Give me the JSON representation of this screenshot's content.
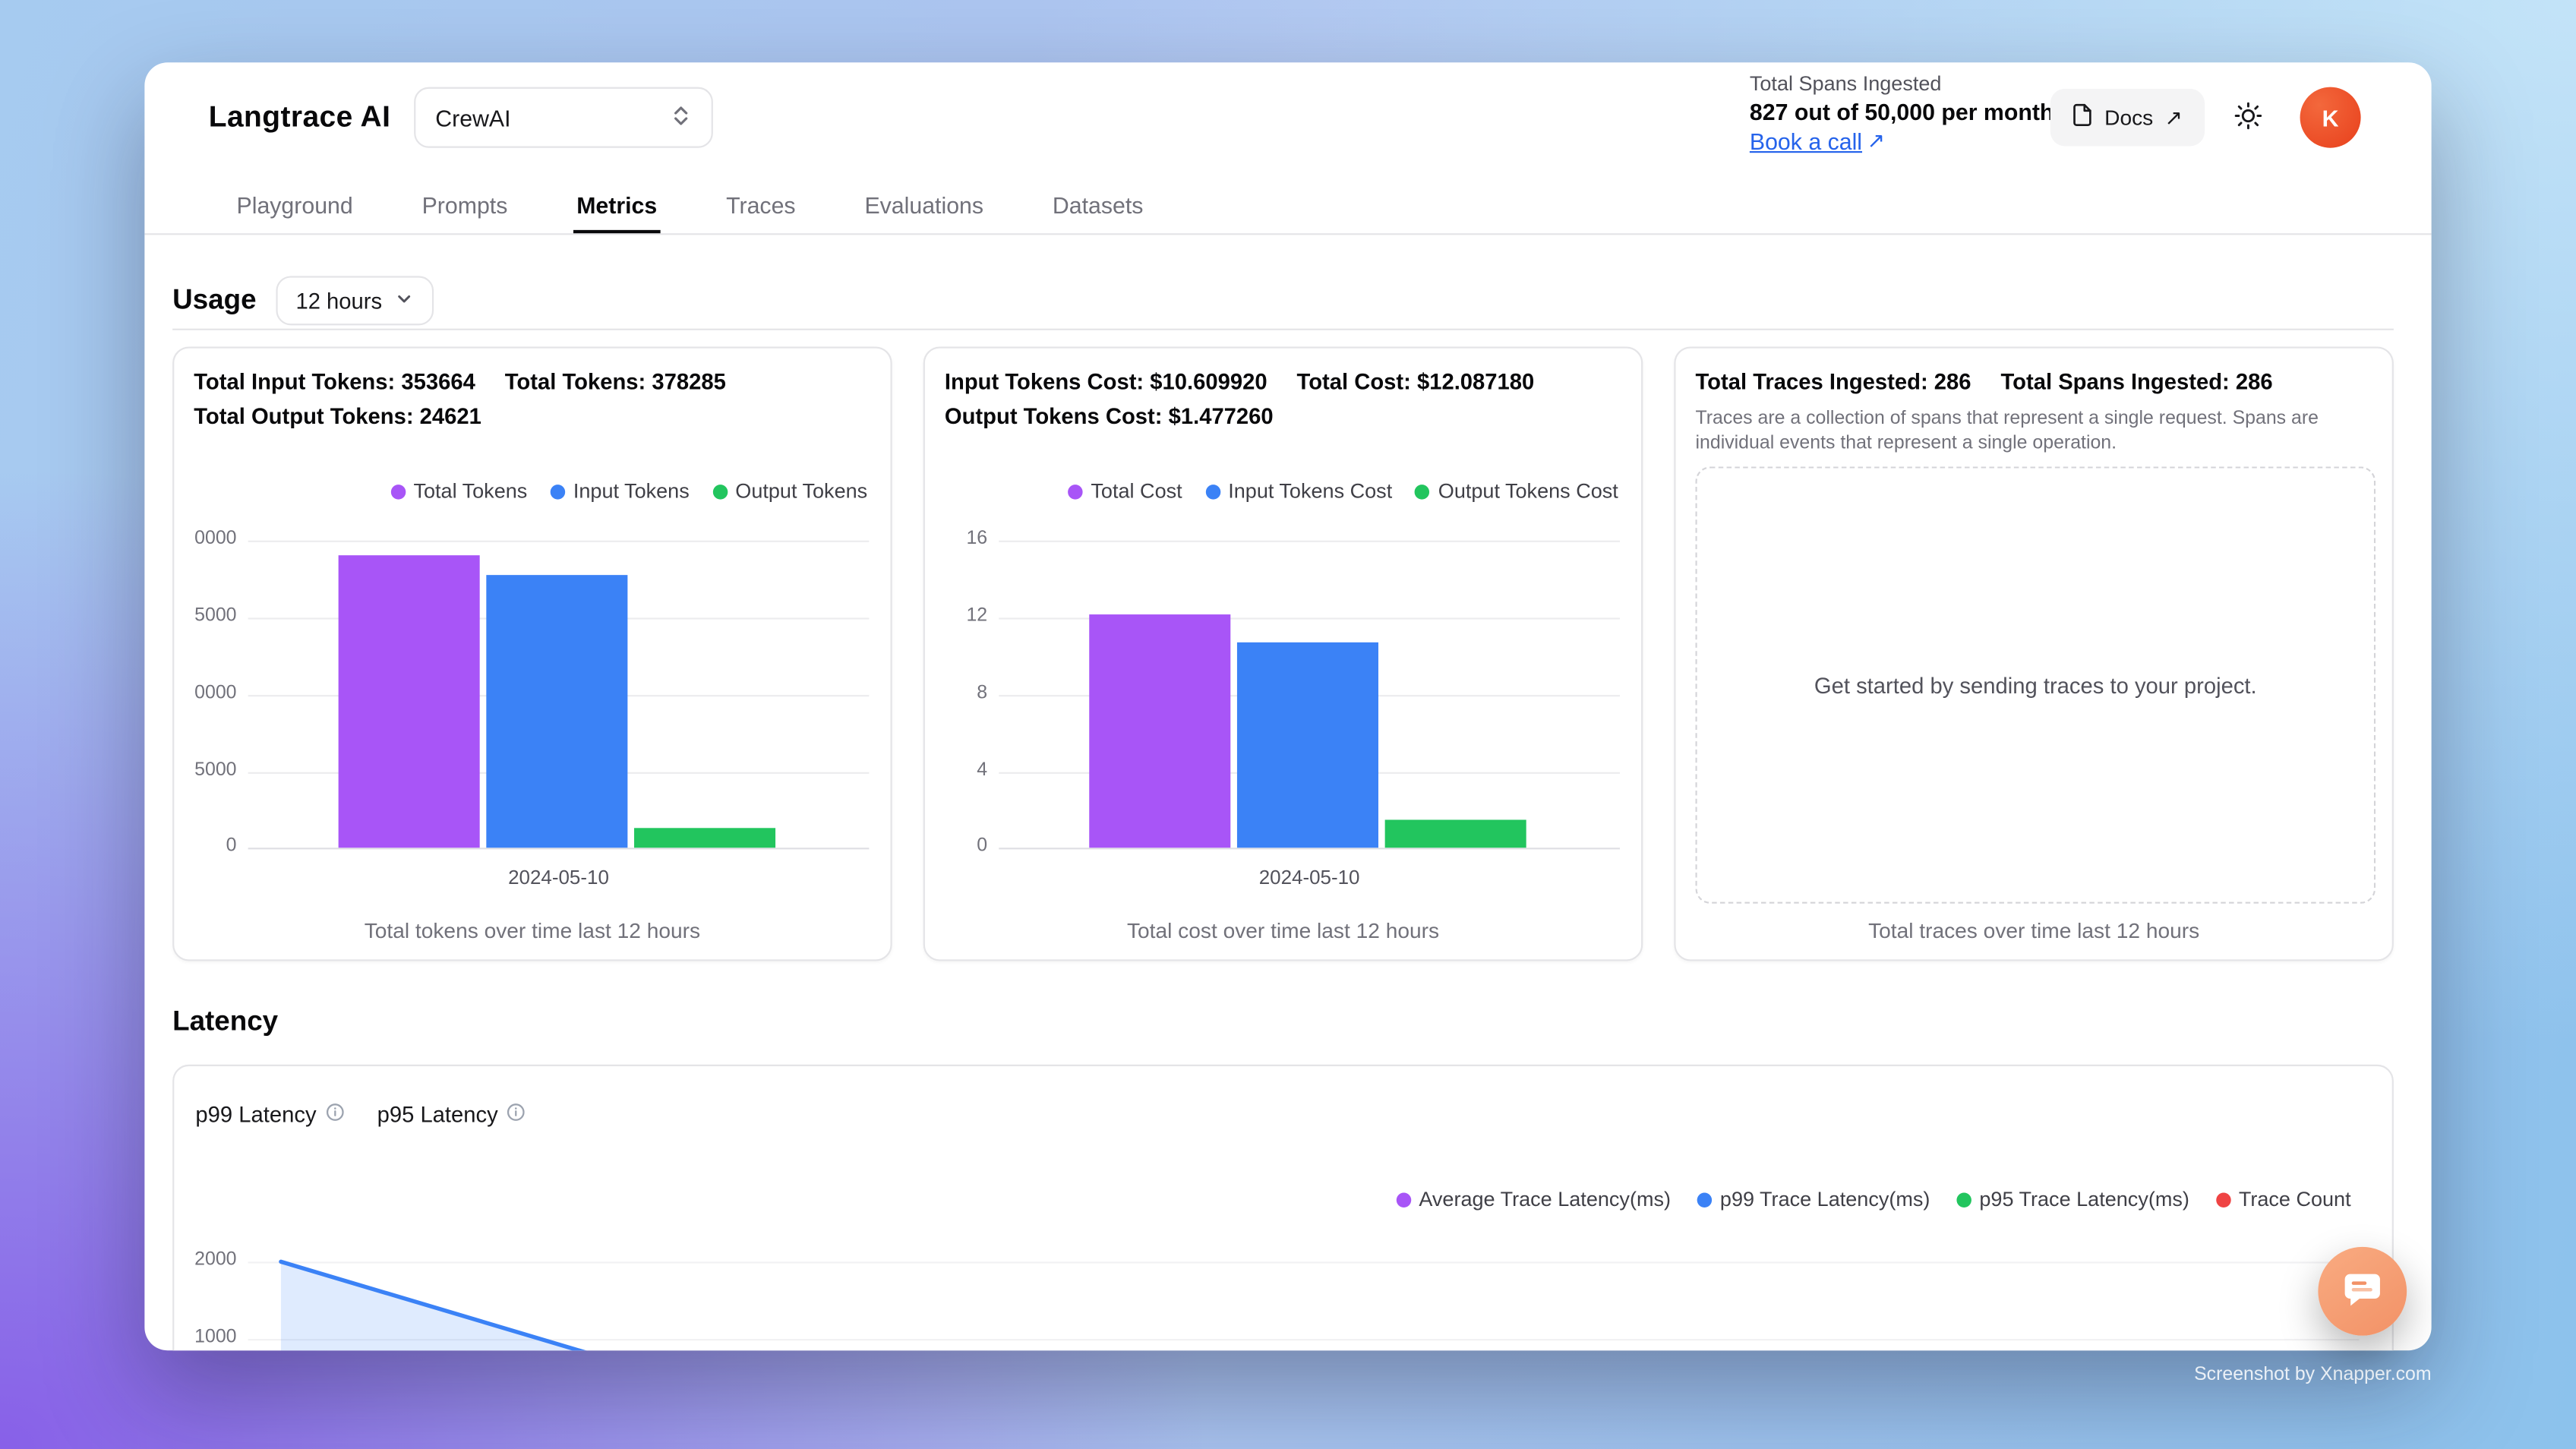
{
  "app": {
    "brand": "Langtrace AI",
    "project_selector": {
      "value": "CrewAI"
    },
    "usage_meter": {
      "label": "Total Spans Ingested",
      "value": "827 out of 50,000 per month",
      "link": "Book a call"
    },
    "docs_button": "Docs",
    "avatar_initial": "K"
  },
  "icons": {
    "arrow_up_right": "↗",
    "chevron_up_down": "⇅",
    "chevron_down": "⌄",
    "sun": "☀",
    "info": "ⓘ",
    "chat": "💬"
  },
  "nav": {
    "tabs": [
      {
        "label": "Playground",
        "active": false
      },
      {
        "label": "Prompts",
        "active": false
      },
      {
        "label": "Metrics",
        "active": true
      },
      {
        "label": "Traces",
        "active": false
      },
      {
        "label": "Evaluations",
        "active": false
      },
      {
        "label": "Datasets",
        "active": false
      }
    ]
  },
  "usage_section": {
    "heading": "Usage",
    "range": "12 hours"
  },
  "cards": {
    "tokens": {
      "stats": [
        "Total Input Tokens: 353664",
        "Total Tokens: 378285",
        "Total Output Tokens: 24621"
      ]
    },
    "cost": {
      "stats": [
        "Input Tokens Cost: $10.609920",
        "Total Cost: $12.087180",
        "Output Tokens Cost: $1.477260"
      ]
    },
    "traces": {
      "stats": [
        "Total Traces Ingested: 286",
        "Total Spans Ingested: 286"
      ],
      "description": "Traces are a collection of spans that represent a single request. Spans are individual events that represent a single operation.",
      "empty_state": "Get started by sending traces to your project.",
      "caption": "Total traces over time last 12 hours"
    }
  },
  "latency_section": {
    "heading": "Latency",
    "tabs": [
      {
        "label": "p99 Latency"
      },
      {
        "label": "p95 Latency"
      }
    ],
    "legend": [
      {
        "label": "Average Trace Latency(ms)",
        "color": "#a855f7"
      },
      {
        "label": "p99 Trace Latency(ms)",
        "color": "#3b82f6"
      },
      {
        "label": "p95 Trace Latency(ms)",
        "color": "#22c55e"
      },
      {
        "label": "Trace Count",
        "color": "#ef4444"
      }
    ],
    "yticks_visible": [
      "2000",
      "1000"
    ]
  },
  "chart_data": [
    {
      "id": "tokens",
      "type": "bar",
      "title": "Total tokens over time last 12 hours",
      "categories": [
        "2024-05-10"
      ],
      "series": [
        {
          "name": "Total Tokens",
          "color": "#a855f7",
          "values": [
            378285
          ]
        },
        {
          "name": "Input Tokens",
          "color": "#3b82f6",
          "values": [
            353664
          ]
        },
        {
          "name": "Output Tokens",
          "color": "#22c55e",
          "values": [
            24621
          ]
        }
      ],
      "ylim": [
        0,
        400000
      ],
      "ytick_labels_displayed": [
        "0000",
        "5000",
        "0000",
        "5000",
        "0"
      ],
      "grid": true,
      "legend_position": "top-right"
    },
    {
      "id": "cost",
      "type": "bar",
      "title": "Total cost over time last 12 hours",
      "categories": [
        "2024-05-10"
      ],
      "series": [
        {
          "name": "Total Cost",
          "color": "#a855f7",
          "values": [
            12.08718
          ]
        },
        {
          "name": "Input Tokens Cost",
          "color": "#3b82f6",
          "values": [
            10.60992
          ]
        },
        {
          "name": "Output Tokens Cost",
          "color": "#22c55e",
          "values": [
            1.47726
          ]
        }
      ],
      "ylim": [
        0,
        16
      ],
      "ytick_labels_displayed": [
        "16",
        "12",
        "8",
        "4",
        "0"
      ],
      "grid": true,
      "legend_position": "top-right"
    },
    {
      "id": "latency",
      "type": "area",
      "title": "Latency over time (partially visible, cut off at bottom of viewport)",
      "series": [
        {
          "name": "p99 Trace Latency(ms)",
          "color": "#3b82f6",
          "values_visible": [
            2000,
            700
          ]
        }
      ],
      "yticks_visible": [
        2000,
        1000
      ],
      "grid": true,
      "legend_position": "top-right"
    }
  ],
  "watermark": "Screenshot by Xnapper.com",
  "colors": {
    "purple": "#a855f7",
    "blue": "#3b82f6",
    "green": "#22c55e",
    "red": "#ef4444",
    "link_blue": "#2563eb",
    "avatar_bg": "#e8401c",
    "chat_bg": "#f29b72"
  }
}
